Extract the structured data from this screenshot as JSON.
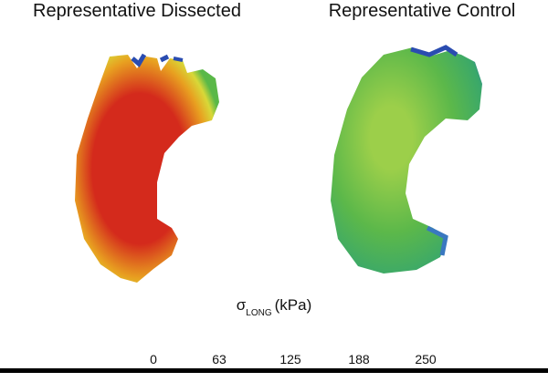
{
  "panels": [
    {
      "title": "Representative Dissected"
    },
    {
      "title": "Representative Control"
    }
  ],
  "colorbar": {
    "symbol": "σ",
    "subscript": "LONG",
    "unit": "(kPa)",
    "ticks": [
      0,
      63,
      125,
      188,
      250
    ]
  }
}
